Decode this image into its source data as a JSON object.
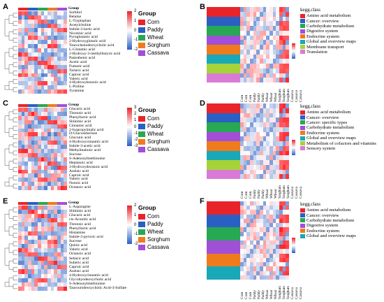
{
  "panels": {
    "A": {
      "label": "A",
      "rows": [
        "Sorbitol",
        "Betaine",
        "L-Tryptophan",
        "Acetylcholine",
        "Indole-3-lactic acid",
        "Nicotinic acid",
        "Pyroglutamic acid",
        "2-Hydroxyglutaric acid",
        "Taurochenodeoxycholic acid",
        "L-Glutamic acid",
        "2-Hydroxy-3-methylbutyric acid",
        "Pantothenic acid",
        "Acetic acid",
        "Fumaric acid",
        "Tartaric acid",
        "Caproic acid",
        "Valeric acid",
        "4-Hydroxybenzoic acid",
        "L-Proline",
        "Tyramine"
      ]
    },
    "C": {
      "label": "C",
      "rows": [
        "Glucaric acid",
        "Threonic acid",
        "Phenyllactic acid",
        "Shikimic acid",
        "Cinnamic acid",
        "2-Isopropylmalic acid",
        "D-Glucosidaclose",
        "Gluconic acid",
        "4-Hydroxycinnamic acid",
        "Indole-3-acetic acid",
        "Methylmalonic acid",
        "Sucrose",
        "S-Adenosylmethionine",
        "Heptanoic acid",
        "3-Hydroxydecanoic acid",
        "Azelaic acid",
        "Caproic acid",
        "Valeric acid",
        "Nonoic acid",
        "Octanoic acid"
      ]
    },
    "E": {
      "label": "E",
      "rows": [
        "L-Asparagine",
        "Shikimic acid",
        "Glucaric acid",
        "cis-Aconitic acid",
        "Threonic acid",
        "Phenyllactic acid",
        "Histamine",
        "Indole-3-pyruvic acid",
        "Sucrose",
        "Quinic acid",
        "Valeric acid",
        "Octanoic acid",
        "Sebacic acid",
        "Suberic acid",
        "Caproic acid",
        "Azelaic acid",
        "4-Hydroxycinnamic acid",
        "Glycohyodeoxycholic acid",
        "S-Adenosylmethionine",
        "Taurourodeoxycholic Acid-3-Sulfate"
      ]
    },
    "B": {
      "label": "B"
    },
    "D": {
      "label": "D"
    },
    "F": {
      "label": "F"
    }
  },
  "group_legend": {
    "title": "Group",
    "items": [
      {
        "name": "Corn",
        "color": "#e8242a"
      },
      {
        "name": "Paddy",
        "color": "#2a5fc4"
      },
      {
        "name": "Wheat",
        "color": "#27a852"
      },
      {
        "name": "Sorghum",
        "color": "#f07b1d"
      },
      {
        "name": "Cassava",
        "color": "#a24fd8"
      }
    ]
  },
  "scales": {
    "A": [
      "2",
      "1",
      "0",
      "-1",
      "-2"
    ],
    "C": [
      "3",
      "2",
      "1",
      "0",
      "-1",
      "-2",
      "-3"
    ],
    "E": [
      "2",
      "1",
      "0",
      "-1",
      "-2"
    ]
  },
  "kegg": {
    "B": {
      "title": "kegg.class",
      "items": [
        {
          "name": "Amino acid metabolism",
          "color": "#e8242a"
        },
        {
          "name": "Cancer: overview",
          "color": "#2a5fc4"
        },
        {
          "name": "Carbohydrate metabolism",
          "color": "#27a852"
        },
        {
          "name": "Digestive system",
          "color": "#a24fd8"
        },
        {
          "name": "Endocrine system",
          "color": "#f07b1d"
        },
        {
          "name": "Global and overview maps",
          "color": "#18a8b8"
        },
        {
          "name": "Membrane transport",
          "color": "#a6d23a"
        },
        {
          "name": "Translation",
          "color": "#d97bd6"
        }
      ]
    },
    "D": {
      "title": "kegg.class",
      "items": [
        {
          "name": "Amino acid metabolism",
          "color": "#e8242a"
        },
        {
          "name": "Cancer: overview",
          "color": "#2a5fc4"
        },
        {
          "name": "Cancer: specific types",
          "color": "#27a852"
        },
        {
          "name": "Carbohydrate metabolism",
          "color": "#a24fd8"
        },
        {
          "name": "Endocrine system",
          "color": "#f07b1d"
        },
        {
          "name": "Global and overview maps",
          "color": "#18a8b8"
        },
        {
          "name": "Metabolism of cofactors and vitamins",
          "color": "#a6d23a"
        },
        {
          "name": "Sensory system",
          "color": "#d97bd6"
        }
      ]
    },
    "F": {
      "title": "kegg.class",
      "items": [
        {
          "name": "Amino acid metabolism",
          "color": "#e8242a"
        },
        {
          "name": "Cancer: overview",
          "color": "#2a5fc4"
        },
        {
          "name": "Carbohydrate metabolism",
          "color": "#27a852"
        },
        {
          "name": "Digestive system",
          "color": "#a24fd8"
        },
        {
          "name": "Endocrine system",
          "color": "#f07b1d"
        },
        {
          "name": "Global and overview maps",
          "color": "#18a8b8"
        }
      ]
    }
  },
  "columns": [
    "Corn",
    "Corn",
    "Corn",
    "Paddy",
    "Paddy",
    "Paddy",
    "Wheat",
    "Wheat",
    "Wheat",
    "Sorghum",
    "Sorghum",
    "Sorghum",
    "Cassava",
    "Cassava",
    "Cassava"
  ],
  "group_label": "Group"
}
